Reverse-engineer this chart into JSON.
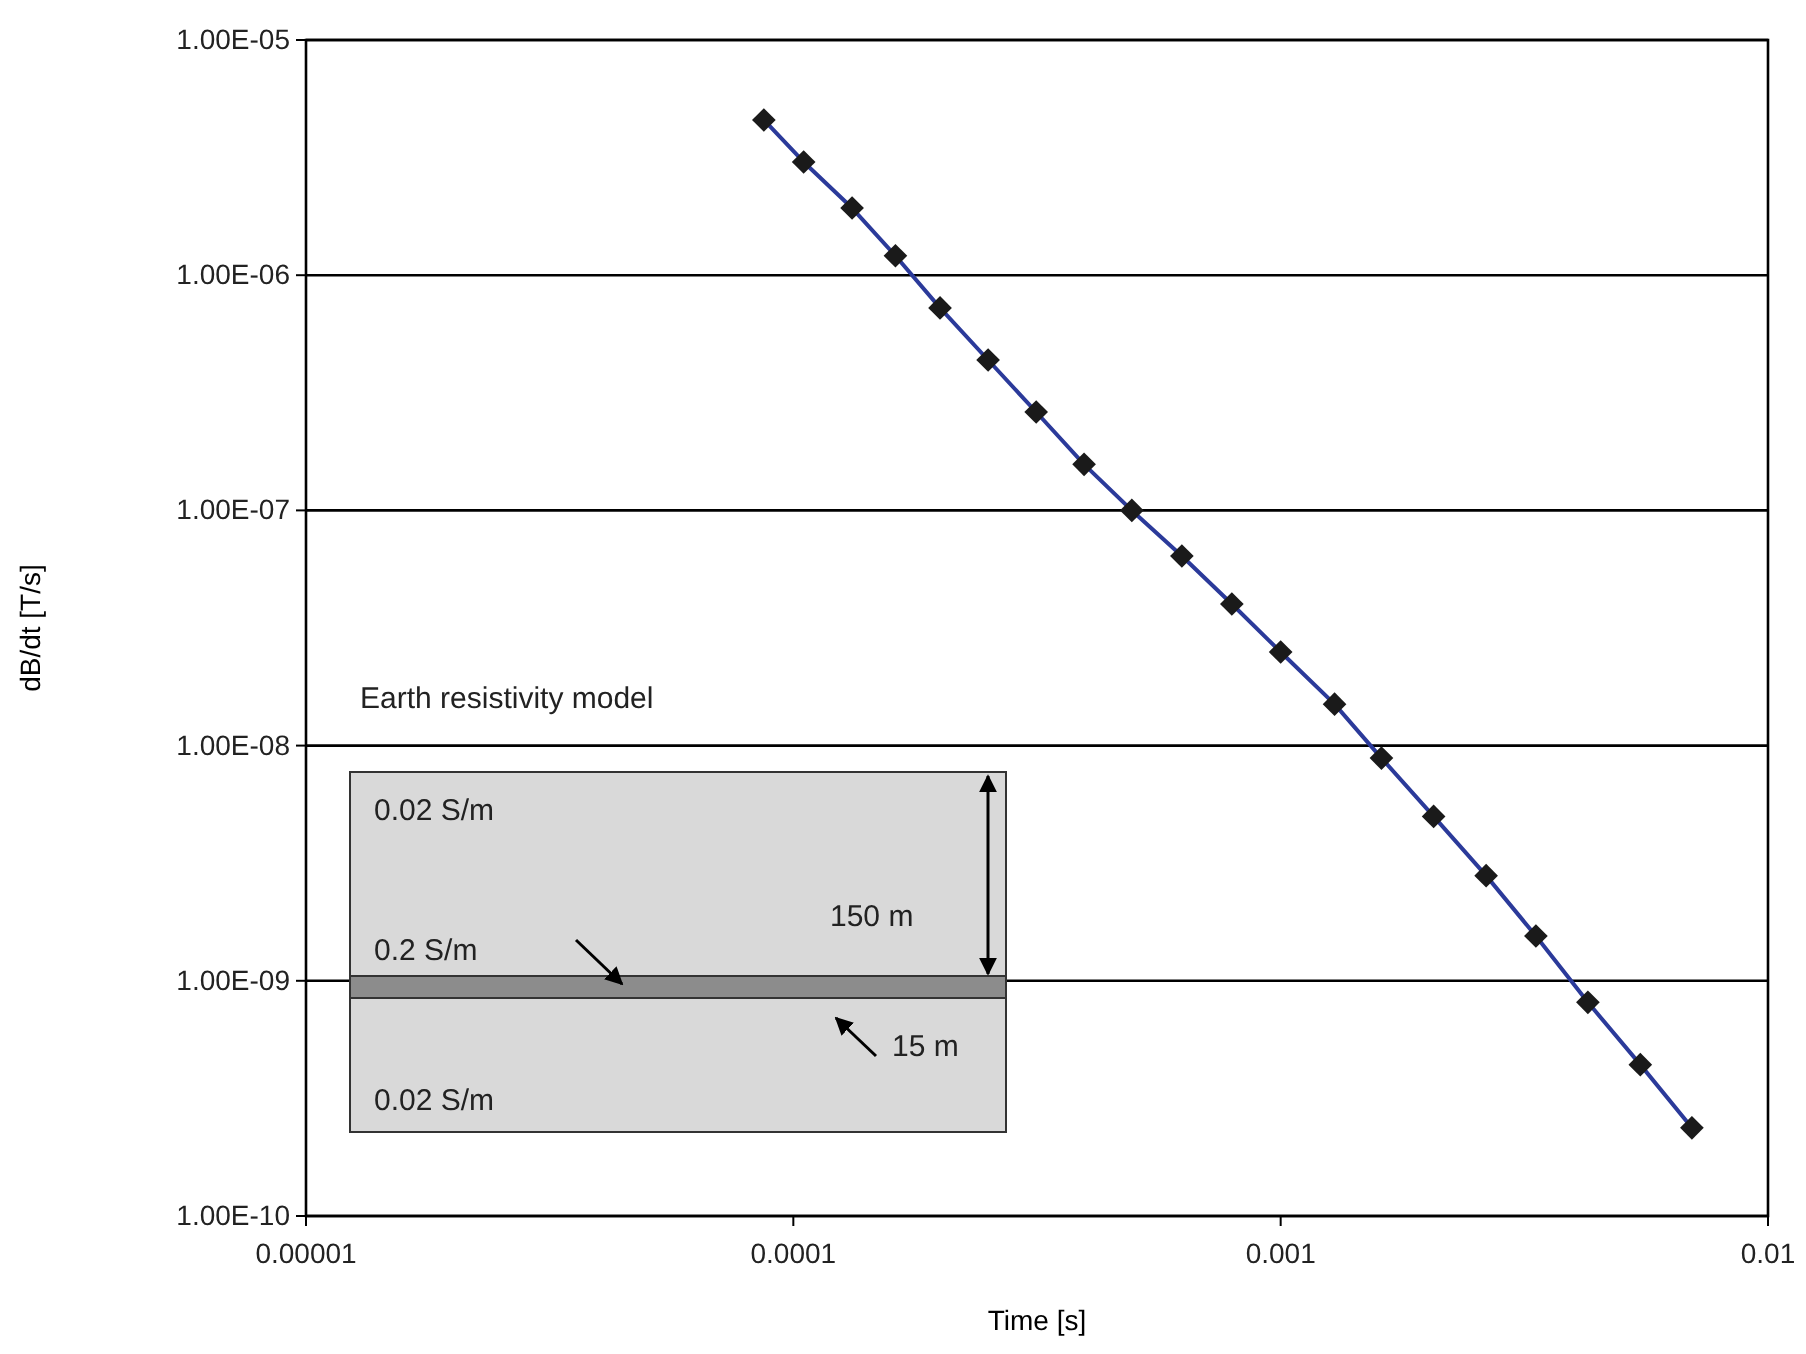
{
  "chart_data": {
    "type": "line",
    "xlabel": "Time [s]",
    "ylabel": "dB/dt [T/s]",
    "log": "xy",
    "grid": "y",
    "marker": "diamond",
    "line_style": "solid",
    "xlim": [
      1e-05,
      0.01
    ],
    "ylim": [
      1e-10,
      1e-05
    ],
    "xticks": [
      {
        "value": 1e-05,
        "label": "0.00001"
      },
      0.0001,
      0.001,
      0.01
    ],
    "yticks": [
      {
        "value": 1e-10,
        "label": "1.00E-10"
      },
      {
        "value": 1e-09,
        "label": "1.00E-09"
      },
      {
        "value": 1e-08,
        "label": "1.00E-08"
      },
      {
        "value": 1e-07,
        "label": "1.00E-07"
      },
      {
        "value": 1e-06,
        "label": "1.00E-06"
      },
      {
        "value": 1e-05,
        "label": "1.00E-05"
      }
    ],
    "series": [
      {
        "color": "#2b3a9a",
        "x": [
          8.7e-05,
          0.000105,
          0.000132,
          0.000162,
          0.0002,
          0.000251,
          0.000315,
          0.000395,
          0.000495,
          0.000627,
          0.000794,
          0.001,
          0.00129,
          0.00161,
          0.00206,
          0.00264,
          0.00334,
          0.00427,
          0.00547,
          0.00698
        ],
        "values": [
          4.57e-06,
          3.03e-06,
          1.93e-06,
          1.21e-06,
          7.26e-07,
          4.36e-07,
          2.62e-07,
          1.57e-07,
          1e-07,
          6.4e-08,
          4e-08,
          2.5e-08,
          1.5e-08,
          8.85e-09,
          5e-09,
          2.8e-09,
          1.55e-09,
          8.1e-10,
          4.4e-10,
          2.37e-10
        ]
      }
    ],
    "annotations": [
      "Earth resistivity model",
      "0.02 S/m",
      "150 m",
      "0.2 S/m",
      "15 m",
      "0.02 S/m"
    ]
  }
}
